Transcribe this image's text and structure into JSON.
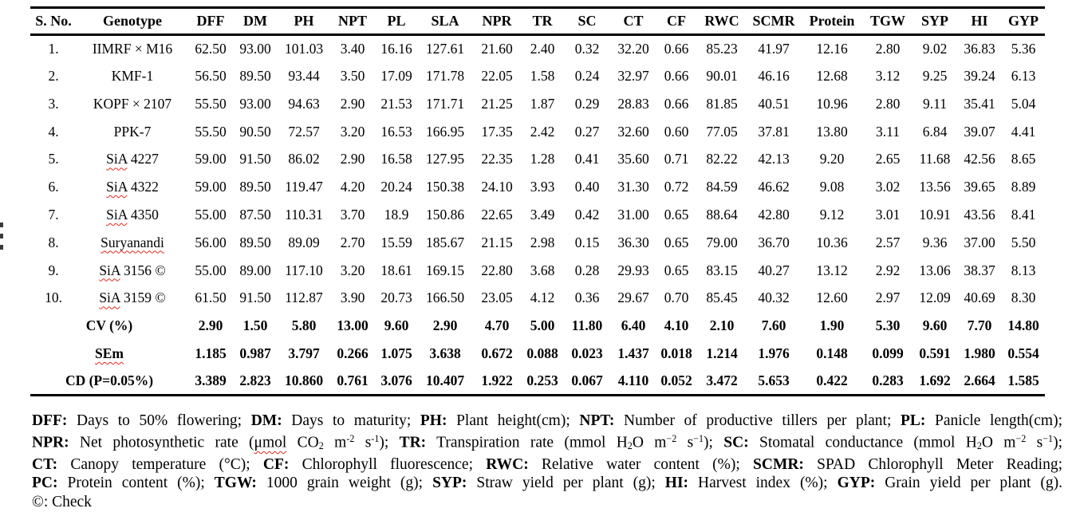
{
  "colors": {
    "squiggle_red": "#e8281e",
    "text": "#000000",
    "background": "#ffffff",
    "border": "#000000"
  },
  "table": {
    "columns": [
      "S. No.",
      "Genotype",
      "DFF",
      "DM",
      "PH",
      "NPT",
      "PL",
      "SLA",
      "NPR",
      "TR",
      "SC",
      "CT",
      "CF",
      "RWC",
      "SCMR",
      "Protein",
      "TGW",
      "SYP",
      "HI",
      "GYP"
    ],
    "rows": [
      {
        "sno": "1.",
        "genotype": "IIMRF × M16",
        "squiggle_part": "",
        "values": [
          "62.50",
          "93.00",
          "101.03",
          "3.40",
          "16.16",
          "127.61",
          "21.60",
          "2.40",
          "0.32",
          "32.20",
          "0.66",
          "85.23",
          "41.97",
          "12.16",
          "2.80",
          "9.02",
          "36.83",
          "5.36"
        ]
      },
      {
        "sno": "2.",
        "genotype": "KMF-1",
        "squiggle_part": "",
        "values": [
          "56.50",
          "89.50",
          "93.44",
          "3.50",
          "17.09",
          "171.78",
          "22.05",
          "1.58",
          "0.24",
          "32.97",
          "0.66",
          "90.01",
          "46.16",
          "12.68",
          "3.12",
          "9.25",
          "39.24",
          "6.13"
        ]
      },
      {
        "sno": "3.",
        "genotype": "KOPF × 2107",
        "squiggle_part": "",
        "values": [
          "55.50",
          "93.00",
          "94.63",
          "2.90",
          "21.53",
          "171.71",
          "21.25",
          "1.87",
          "0.29",
          "28.83",
          "0.66",
          "81.85",
          "40.51",
          "10.96",
          "2.80",
          "9.11",
          "35.41",
          "5.04"
        ]
      },
      {
        "sno": "4.",
        "genotype": "PPK-7",
        "squiggle_part": "",
        "values": [
          "55.50",
          "90.50",
          "72.57",
          "3.20",
          "16.53",
          "166.95",
          "17.35",
          "2.42",
          "0.27",
          "32.60",
          "0.60",
          "77.05",
          "37.81",
          "13.80",
          "3.11",
          "6.84",
          "39.07",
          "4.41"
        ]
      },
      {
        "sno": "5.",
        "genotype": "SiA 4227",
        "squiggle_part": "SiA",
        "values": [
          "59.00",
          "91.50",
          "86.02",
          "2.90",
          "16.58",
          "127.95",
          "22.35",
          "1.28",
          "0.41",
          "35.60",
          "0.71",
          "82.22",
          "42.13",
          "9.20",
          "2.65",
          "11.68",
          "42.56",
          "8.65"
        ]
      },
      {
        "sno": "6.",
        "genotype": "SiA 4322",
        "squiggle_part": "SiA",
        "values": [
          "59.00",
          "89.50",
          "119.47",
          "4.20",
          "20.24",
          "150.38",
          "24.10",
          "3.93",
          "0.40",
          "31.30",
          "0.72",
          "84.59",
          "46.62",
          "9.08",
          "3.02",
          "13.56",
          "39.65",
          "8.89"
        ]
      },
      {
        "sno": "7.",
        "genotype": "SiA 4350",
        "squiggle_part": "SiA",
        "values": [
          "55.00",
          "87.50",
          "110.31",
          "3.70",
          "18.9",
          "150.86",
          "22.65",
          "3.49",
          "0.42",
          "31.00",
          "0.65",
          "88.64",
          "42.80",
          "9.12",
          "3.01",
          "10.91",
          "43.56",
          "8.41"
        ]
      },
      {
        "sno": "8.",
        "genotype": "Suryanandi",
        "squiggle_part": "Suryanandi",
        "values": [
          "56.00",
          "89.50",
          "89.09",
          "2.70",
          "15.59",
          "185.67",
          "21.15",
          "2.98",
          "0.15",
          "36.30",
          "0.65",
          "79.00",
          "36.70",
          "10.36",
          "2.57",
          "9.36",
          "37.00",
          "5.50"
        ]
      },
      {
        "sno": "9.",
        "genotype": "SiA 3156 ©",
        "squiggle_part": "SiA",
        "values": [
          "55.00",
          "89.00",
          "117.10",
          "3.20",
          "18.61",
          "169.15",
          "22.80",
          "3.68",
          "0.28",
          "29.93",
          "0.65",
          "83.15",
          "40.27",
          "13.12",
          "2.92",
          "13.06",
          "38.37",
          "8.13"
        ]
      },
      {
        "sno": "10.",
        "genotype": "SiA 3159 ©",
        "squiggle_part": "SiA",
        "values": [
          "61.50",
          "91.50",
          "112.87",
          "3.90",
          "20.73",
          "166.50",
          "23.05",
          "4.12",
          "0.36",
          "29.67",
          "0.70",
          "85.45",
          "40.32",
          "12.60",
          "2.97",
          "12.09",
          "40.69",
          "8.30"
        ]
      }
    ],
    "summary_rows": [
      {
        "label": "CV (%)",
        "label_squiggle": false,
        "values": [
          "2.90",
          "1.50",
          "5.80",
          "13.00",
          "9.60",
          "2.90",
          "4.70",
          "5.00",
          "11.80",
          "6.40",
          "4.10",
          "2.10",
          "7.60",
          "1.90",
          "5.30",
          "9.60",
          "7.70",
          "14.80"
        ]
      },
      {
        "label": "SEm",
        "label_squiggle": true,
        "values": [
          "1.185",
          "0.987",
          "3.797",
          "0.266",
          "1.075",
          "3.638",
          "0.672",
          "0.088",
          "0.023",
          "1.437",
          "0.018",
          "1.214",
          "1.976",
          "0.148",
          "0.099",
          "0.591",
          "1.980",
          "0.554"
        ]
      },
      {
        "label": "CD (P=0.05%)",
        "label_squiggle": false,
        "values": [
          "3.389",
          "2.823",
          "10.860",
          "0.761",
          "3.076",
          "10.407",
          "1.922",
          "0.253",
          "0.067",
          "4.110",
          "0.052",
          "3.472",
          "5.653",
          "0.422",
          "0.283",
          "1.692",
          "2.664",
          "1.585"
        ]
      }
    ]
  },
  "footnotes": [
    {
      "segments": [
        {
          "t": "DFF:",
          "b": true
        },
        {
          "t": " Days to 50% flowering; "
        },
        {
          "t": "DM:",
          "b": true
        },
        {
          "t": " Days to maturity; "
        },
        {
          "t": "PH:",
          "b": true
        },
        {
          "t": " Plant height(cm); "
        },
        {
          "t": "NPT:",
          "b": true
        },
        {
          "t": " Number of productive tillers per plant; "
        },
        {
          "t": "PL:",
          "b": true
        },
        {
          "t": " Panicle length(cm);"
        }
      ]
    },
    {
      "segments": [
        {
          "t": "NPR:",
          "b": true
        },
        {
          "t": " Net photosynthetic rate ("
        },
        {
          "t": "μmol",
          "sq": true
        },
        {
          "t": " CO"
        },
        {
          "t": "2",
          "sub": true
        },
        {
          "t": " m"
        },
        {
          "t": "-2",
          "sup": true
        },
        {
          "t": " s"
        },
        {
          "t": "-1",
          "sup": true
        },
        {
          "t": "); "
        },
        {
          "t": "TR:",
          "b": true
        },
        {
          "t": " Transpiration rate (mmol H"
        },
        {
          "t": "2",
          "sub": true
        },
        {
          "t": "O m"
        },
        {
          "t": "−2",
          "sup": true
        },
        {
          "t": " s"
        },
        {
          "t": "−1",
          "sup": true
        },
        {
          "t": "); "
        },
        {
          "t": "SC:",
          "b": true
        },
        {
          "t": " Stomatal conductance (mmol H"
        },
        {
          "t": "2",
          "sub": true
        },
        {
          "t": "O m"
        },
        {
          "t": "−2",
          "sup": true
        },
        {
          "t": " s"
        },
        {
          "t": "−1",
          "sup": true
        },
        {
          "t": ");"
        }
      ]
    },
    {
      "segments": [
        {
          "t": "CT:",
          "b": true
        },
        {
          "t": " Canopy temperature (°C); "
        },
        {
          "t": "CF:",
          "b": true
        },
        {
          "t": " Chlorophyll fluorescence; "
        },
        {
          "t": "RWC:",
          "b": true
        },
        {
          "t": " Relative water content (%); "
        },
        {
          "t": "SCMR:",
          "b": true
        },
        {
          "t": " SPAD Chlorophyll Meter Reading;"
        }
      ]
    },
    {
      "segments": [
        {
          "t": "PC:",
          "b": true
        },
        {
          "t": " Protein content (%); "
        },
        {
          "t": "TGW:",
          "b": true
        },
        {
          "t": " 1000 grain weight (g); "
        },
        {
          "t": "SYP:",
          "b": true
        },
        {
          "t": " Straw yield per plant (g); "
        },
        {
          "t": "HI:",
          "b": true
        },
        {
          "t": " Harvest index (%); "
        },
        {
          "t": "GYP:",
          "b": true
        },
        {
          "t": " Grain yield per plant (g)."
        }
      ]
    },
    {
      "segments": [
        {
          "t": "©: Check"
        }
      ]
    }
  ]
}
